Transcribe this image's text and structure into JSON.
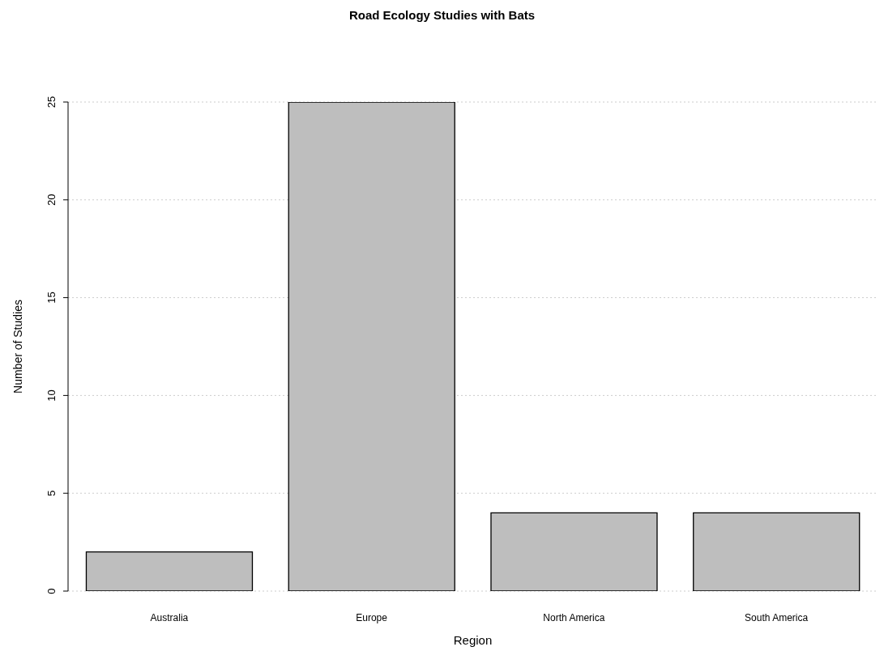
{
  "chart_data": {
    "type": "bar",
    "title": "Road Ecology Studies with Bats",
    "xlabel": "Region",
    "ylabel": "Number of Studies",
    "categories": [
      "Australia",
      "Europe",
      "North America",
      "South America"
    ],
    "values": [
      2,
      25,
      4,
      4
    ],
    "color": "#bebebe",
    "ylim": [
      0,
      25
    ],
    "yticks": [
      0,
      5,
      10,
      15,
      20,
      25
    ],
    "grid": "y"
  }
}
